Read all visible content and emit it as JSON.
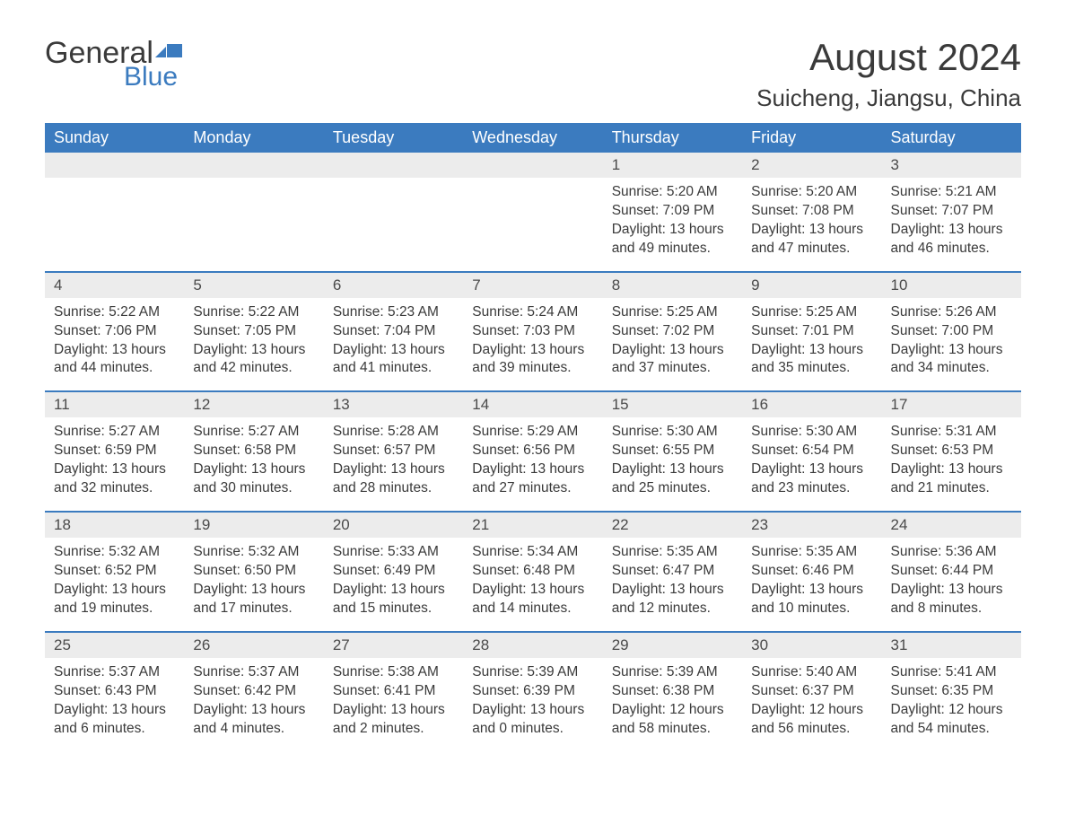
{
  "colors": {
    "header_bg": "#3b7bbf",
    "header_text": "#ffffff",
    "daynum_bg": "#ececec",
    "body_text": "#3a3a3a",
    "row_border": "#3b7bbf",
    "logo_accent": "#3b7bbf"
  },
  "typography": {
    "title_fontsize": 42,
    "location_fontsize": 26,
    "dayhead_fontsize": 18,
    "daynum_fontsize": 17,
    "body_fontsize": 15.5
  },
  "logo": {
    "text1": "General",
    "text2": "Blue"
  },
  "title": "August 2024",
  "location": "Suicheng, Jiangsu, China",
  "day_headers": [
    "Sunday",
    "Monday",
    "Tuesday",
    "Wednesday",
    "Thursday",
    "Friday",
    "Saturday"
  ],
  "weeks": [
    [
      null,
      null,
      null,
      null,
      {
        "n": "1",
        "sr": "Sunrise: 5:20 AM",
        "ss": "Sunset: 7:09 PM",
        "d1": "Daylight: 13 hours",
        "d2": "and 49 minutes."
      },
      {
        "n": "2",
        "sr": "Sunrise: 5:20 AM",
        "ss": "Sunset: 7:08 PM",
        "d1": "Daylight: 13 hours",
        "d2": "and 47 minutes."
      },
      {
        "n": "3",
        "sr": "Sunrise: 5:21 AM",
        "ss": "Sunset: 7:07 PM",
        "d1": "Daylight: 13 hours",
        "d2": "and 46 minutes."
      }
    ],
    [
      {
        "n": "4",
        "sr": "Sunrise: 5:22 AM",
        "ss": "Sunset: 7:06 PM",
        "d1": "Daylight: 13 hours",
        "d2": "and 44 minutes."
      },
      {
        "n": "5",
        "sr": "Sunrise: 5:22 AM",
        "ss": "Sunset: 7:05 PM",
        "d1": "Daylight: 13 hours",
        "d2": "and 42 minutes."
      },
      {
        "n": "6",
        "sr": "Sunrise: 5:23 AM",
        "ss": "Sunset: 7:04 PM",
        "d1": "Daylight: 13 hours",
        "d2": "and 41 minutes."
      },
      {
        "n": "7",
        "sr": "Sunrise: 5:24 AM",
        "ss": "Sunset: 7:03 PM",
        "d1": "Daylight: 13 hours",
        "d2": "and 39 minutes."
      },
      {
        "n": "8",
        "sr": "Sunrise: 5:25 AM",
        "ss": "Sunset: 7:02 PM",
        "d1": "Daylight: 13 hours",
        "d2": "and 37 minutes."
      },
      {
        "n": "9",
        "sr": "Sunrise: 5:25 AM",
        "ss": "Sunset: 7:01 PM",
        "d1": "Daylight: 13 hours",
        "d2": "and 35 minutes."
      },
      {
        "n": "10",
        "sr": "Sunrise: 5:26 AM",
        "ss": "Sunset: 7:00 PM",
        "d1": "Daylight: 13 hours",
        "d2": "and 34 minutes."
      }
    ],
    [
      {
        "n": "11",
        "sr": "Sunrise: 5:27 AM",
        "ss": "Sunset: 6:59 PM",
        "d1": "Daylight: 13 hours",
        "d2": "and 32 minutes."
      },
      {
        "n": "12",
        "sr": "Sunrise: 5:27 AM",
        "ss": "Sunset: 6:58 PM",
        "d1": "Daylight: 13 hours",
        "d2": "and 30 minutes."
      },
      {
        "n": "13",
        "sr": "Sunrise: 5:28 AM",
        "ss": "Sunset: 6:57 PM",
        "d1": "Daylight: 13 hours",
        "d2": "and 28 minutes."
      },
      {
        "n": "14",
        "sr": "Sunrise: 5:29 AM",
        "ss": "Sunset: 6:56 PM",
        "d1": "Daylight: 13 hours",
        "d2": "and 27 minutes."
      },
      {
        "n": "15",
        "sr": "Sunrise: 5:30 AM",
        "ss": "Sunset: 6:55 PM",
        "d1": "Daylight: 13 hours",
        "d2": "and 25 minutes."
      },
      {
        "n": "16",
        "sr": "Sunrise: 5:30 AM",
        "ss": "Sunset: 6:54 PM",
        "d1": "Daylight: 13 hours",
        "d2": "and 23 minutes."
      },
      {
        "n": "17",
        "sr": "Sunrise: 5:31 AM",
        "ss": "Sunset: 6:53 PM",
        "d1": "Daylight: 13 hours",
        "d2": "and 21 minutes."
      }
    ],
    [
      {
        "n": "18",
        "sr": "Sunrise: 5:32 AM",
        "ss": "Sunset: 6:52 PM",
        "d1": "Daylight: 13 hours",
        "d2": "and 19 minutes."
      },
      {
        "n": "19",
        "sr": "Sunrise: 5:32 AM",
        "ss": "Sunset: 6:50 PM",
        "d1": "Daylight: 13 hours",
        "d2": "and 17 minutes."
      },
      {
        "n": "20",
        "sr": "Sunrise: 5:33 AM",
        "ss": "Sunset: 6:49 PM",
        "d1": "Daylight: 13 hours",
        "d2": "and 15 minutes."
      },
      {
        "n": "21",
        "sr": "Sunrise: 5:34 AM",
        "ss": "Sunset: 6:48 PM",
        "d1": "Daylight: 13 hours",
        "d2": "and 14 minutes."
      },
      {
        "n": "22",
        "sr": "Sunrise: 5:35 AM",
        "ss": "Sunset: 6:47 PM",
        "d1": "Daylight: 13 hours",
        "d2": "and 12 minutes."
      },
      {
        "n": "23",
        "sr": "Sunrise: 5:35 AM",
        "ss": "Sunset: 6:46 PM",
        "d1": "Daylight: 13 hours",
        "d2": "and 10 minutes."
      },
      {
        "n": "24",
        "sr": "Sunrise: 5:36 AM",
        "ss": "Sunset: 6:44 PM",
        "d1": "Daylight: 13 hours",
        "d2": "and 8 minutes."
      }
    ],
    [
      {
        "n": "25",
        "sr": "Sunrise: 5:37 AM",
        "ss": "Sunset: 6:43 PM",
        "d1": "Daylight: 13 hours",
        "d2": "and 6 minutes."
      },
      {
        "n": "26",
        "sr": "Sunrise: 5:37 AM",
        "ss": "Sunset: 6:42 PM",
        "d1": "Daylight: 13 hours",
        "d2": "and 4 minutes."
      },
      {
        "n": "27",
        "sr": "Sunrise: 5:38 AM",
        "ss": "Sunset: 6:41 PM",
        "d1": "Daylight: 13 hours",
        "d2": "and 2 minutes."
      },
      {
        "n": "28",
        "sr": "Sunrise: 5:39 AM",
        "ss": "Sunset: 6:39 PM",
        "d1": "Daylight: 13 hours",
        "d2": "and 0 minutes."
      },
      {
        "n": "29",
        "sr": "Sunrise: 5:39 AM",
        "ss": "Sunset: 6:38 PM",
        "d1": "Daylight: 12 hours",
        "d2": "and 58 minutes."
      },
      {
        "n": "30",
        "sr": "Sunrise: 5:40 AM",
        "ss": "Sunset: 6:37 PM",
        "d1": "Daylight: 12 hours",
        "d2": "and 56 minutes."
      },
      {
        "n": "31",
        "sr": "Sunrise: 5:41 AM",
        "ss": "Sunset: 6:35 PM",
        "d1": "Daylight: 12 hours",
        "d2": "and 54 minutes."
      }
    ]
  ]
}
